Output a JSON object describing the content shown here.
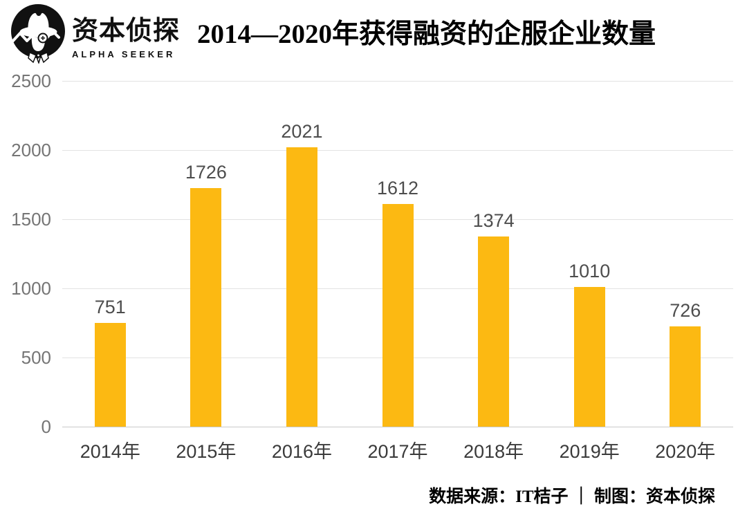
{
  "header": {
    "brand": {
      "name": "资本侦探",
      "subtitle": "ALPHA SEEKER"
    },
    "title": "2014—2020年获得融资的企服企业数量"
  },
  "chart_data": {
    "type": "bar",
    "title": "2014—2020年获得融资的企服企业数量",
    "categories": [
      "2014年",
      "2015年",
      "2016年",
      "2017年",
      "2018年",
      "2019年",
      "2020年"
    ],
    "values": [
      751,
      1726,
      2021,
      1612,
      1374,
      1010,
      726
    ],
    "xlabel": "",
    "ylabel": "",
    "ylim": [
      0,
      2500
    ],
    "yticks": [
      0,
      500,
      1000,
      1500,
      2000,
      2500
    ],
    "grid": true,
    "legend_position": "none",
    "bar_color": "#FCB912",
    "gridline_color": "#e2e2e2",
    "baseline_color": "#c9c9c9",
    "ytick_color": "#757575",
    "xtick_color": "#3a3a3a",
    "value_label_color": "#4d4d4d"
  },
  "footer": {
    "source": "数据来源：IT桔子 ｜ 制图：资本侦探"
  }
}
